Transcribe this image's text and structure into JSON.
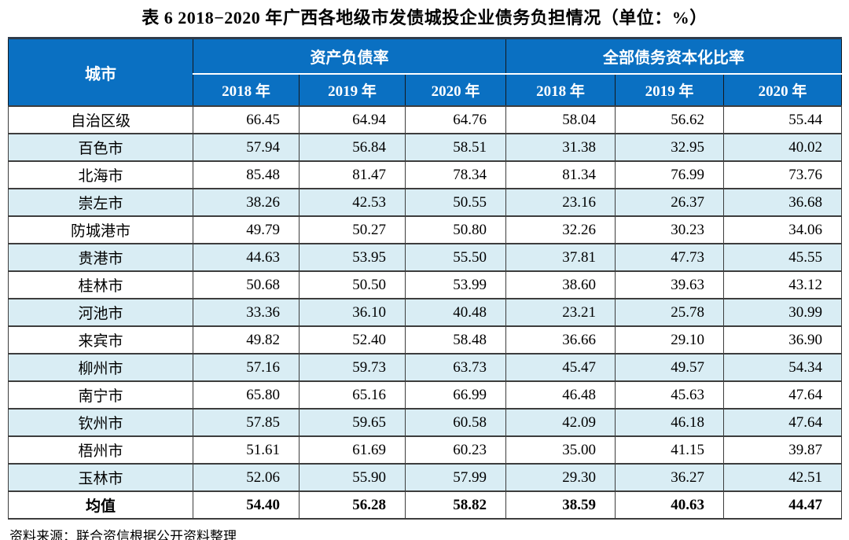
{
  "title": "表 6  2018−2020 年广西各地级市发债城投企业债务负担情况（单位：%）",
  "source_note": "资料来源：联合资信根据公开资料整理",
  "colors": {
    "header_bg": "#0a70c2",
    "header_text": "#ffffff",
    "row_alt_bg": "#d9edf4",
    "grid_line": "#3d3d3d",
    "top_border": "#2e3b4a"
  },
  "chart_data": {
    "type": "table",
    "title": "表 6 2018−2020 年广西各地级市发债城投企业债务负担情况（单位：%）",
    "unit": "%",
    "corner_header": "城市",
    "column_groups": [
      {
        "label": "资产负债率",
        "years": [
          "2018 年",
          "2019 年",
          "2020 年"
        ]
      },
      {
        "label": "全部债务资本化比率",
        "years": [
          "2018 年",
          "2019 年",
          "2020 年"
        ]
      }
    ],
    "rows": [
      {
        "city": "自治区级",
        "values": [
          66.45,
          64.94,
          64.76,
          58.04,
          56.62,
          55.44
        ],
        "bold": false
      },
      {
        "city": "百色市",
        "values": [
          57.94,
          56.84,
          58.51,
          31.38,
          32.95,
          40.02
        ],
        "bold": false
      },
      {
        "city": "北海市",
        "values": [
          85.48,
          81.47,
          78.34,
          81.34,
          76.99,
          73.76
        ],
        "bold": false
      },
      {
        "city": "崇左市",
        "values": [
          38.26,
          42.53,
          50.55,
          23.16,
          26.37,
          36.68
        ],
        "bold": false
      },
      {
        "city": "防城港市",
        "values": [
          49.79,
          50.27,
          50.8,
          32.26,
          30.23,
          34.06
        ],
        "bold": false
      },
      {
        "city": "贵港市",
        "values": [
          44.63,
          53.95,
          55.5,
          37.81,
          47.73,
          45.55
        ],
        "bold": false
      },
      {
        "city": "桂林市",
        "values": [
          50.68,
          50.5,
          53.99,
          38.6,
          39.63,
          43.12
        ],
        "bold": false
      },
      {
        "city": "河池市",
        "values": [
          33.36,
          36.1,
          40.48,
          23.21,
          25.78,
          30.99
        ],
        "bold": false
      },
      {
        "city": "来宾市",
        "values": [
          49.82,
          52.4,
          58.48,
          36.66,
          29.1,
          36.9
        ],
        "bold": false
      },
      {
        "city": "柳州市",
        "values": [
          57.16,
          59.73,
          63.73,
          45.47,
          49.57,
          54.34
        ],
        "bold": false
      },
      {
        "city": "南宁市",
        "values": [
          65.8,
          65.16,
          66.99,
          46.48,
          45.63,
          47.64
        ],
        "bold": false
      },
      {
        "city": "钦州市",
        "values": [
          57.85,
          59.65,
          60.58,
          42.09,
          46.18,
          47.64
        ],
        "bold": false
      },
      {
        "city": "梧州市",
        "values": [
          51.61,
          61.69,
          60.23,
          35.0,
          41.15,
          39.87
        ],
        "bold": false
      },
      {
        "city": "玉林市",
        "values": [
          52.06,
          55.9,
          57.99,
          29.3,
          36.27,
          42.51
        ],
        "bold": false
      },
      {
        "city": "均值",
        "values": [
          54.4,
          56.28,
          58.82,
          38.59,
          40.63,
          44.47
        ],
        "bold": true
      }
    ]
  }
}
